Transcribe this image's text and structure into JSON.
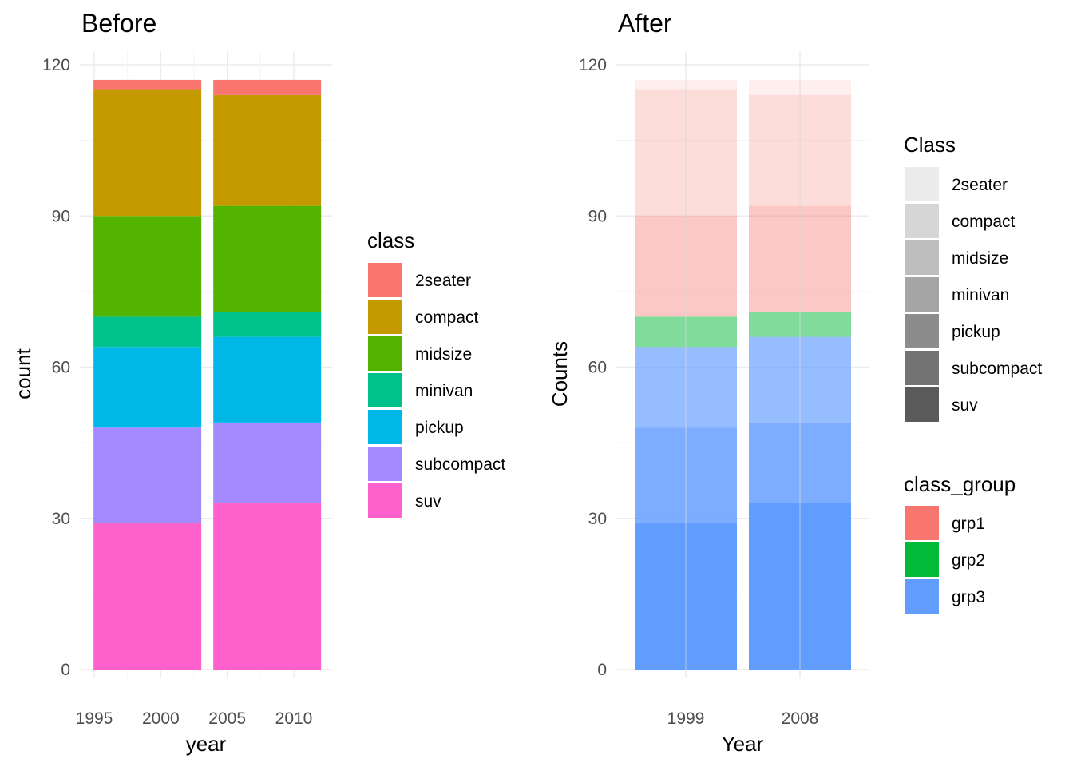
{
  "chart_data": [
    {
      "type": "bar",
      "stacked": true,
      "title": "Before",
      "xlabel": "year",
      "ylabel": "count",
      "xlim": [
        1994.5,
        2012.5
      ],
      "ylim": [
        0,
        120
      ],
      "x_ticks": [
        1995,
        2000,
        2005,
        2010
      ],
      "y_ticks": [
        0,
        30,
        60,
        90,
        120
      ],
      "x": [
        1999,
        2008
      ],
      "legend": {
        "title": "class",
        "position": "right"
      },
      "series": [
        {
          "name": "suv",
          "color": "#FF61CC",
          "values": [
            29,
            33
          ]
        },
        {
          "name": "subcompact",
          "color": "#A58AFF",
          "values": [
            19,
            16
          ]
        },
        {
          "name": "pickup",
          "color": "#00B8E7",
          "values": [
            16,
            17
          ]
        },
        {
          "name": "minivan",
          "color": "#00C08B",
          "values": [
            6,
            5
          ]
        },
        {
          "name": "midsize",
          "color": "#53B400",
          "values": [
            20,
            21
          ]
        },
        {
          "name": "compact",
          "color": "#C49A00",
          "values": [
            25,
            22
          ]
        },
        {
          "name": "2seater",
          "color": "#F8766D",
          "values": [
            2,
            3
          ]
        }
      ],
      "legend_order": [
        "2seater",
        "compact",
        "midsize",
        "minivan",
        "pickup",
        "subcompact",
        "suv"
      ],
      "grid": true
    },
    {
      "type": "bar",
      "stacked": true,
      "title": "After",
      "xlabel": "Year",
      "ylabel": "Counts",
      "ylim": [
        0,
        120
      ],
      "categories": [
        "1999",
        "2008"
      ],
      "y_ticks": [
        0,
        30,
        60,
        90,
        120
      ],
      "series": [
        {
          "name": "suv",
          "group": "grp3",
          "alpha": 1.0,
          "values": [
            29,
            33
          ]
        },
        {
          "name": "subcompact",
          "group": "grp3",
          "alpha": 0.83,
          "values": [
            19,
            16
          ]
        },
        {
          "name": "pickup",
          "group": "grp3",
          "alpha": 0.67,
          "values": [
            16,
            17
          ]
        },
        {
          "name": "minivan",
          "group": "grp2",
          "alpha": 0.5,
          "values": [
            6,
            5
          ]
        },
        {
          "name": "midsize",
          "group": "grp1",
          "alpha": 0.4,
          "values": [
            20,
            21
          ]
        },
        {
          "name": "compact",
          "group": "grp1",
          "alpha": 0.25,
          "values": [
            25,
            22
          ]
        },
        {
          "name": "2seater",
          "group": "grp1",
          "alpha": 0.12,
          "values": [
            2,
            3
          ]
        }
      ],
      "legends": [
        {
          "title": "Class",
          "position": "right",
          "entries": [
            {
              "label": "2seater",
              "color": "#EBEBEB"
            },
            {
              "label": "compact",
              "color": "#D6D6D6"
            },
            {
              "label": "midsize",
              "color": "#BEBEBE"
            },
            {
              "label": "minivan",
              "color": "#A5A5A5"
            },
            {
              "label": "pickup",
              "color": "#8C8C8C"
            },
            {
              "label": "subcompact",
              "color": "#737373"
            },
            {
              "label": "suv",
              "color": "#5A5A5A"
            }
          ]
        },
        {
          "title": "class_group",
          "position": "right",
          "entries": [
            {
              "label": "grp1",
              "color": "#F8766D"
            },
            {
              "label": "grp2",
              "color": "#00BA38"
            },
            {
              "label": "grp3",
              "color": "#619CFF"
            }
          ]
        }
      ],
      "group_colors": {
        "grp1": "#F8766D",
        "grp2": "#00BA38",
        "grp3": "#619CFF"
      },
      "grid": true
    }
  ]
}
